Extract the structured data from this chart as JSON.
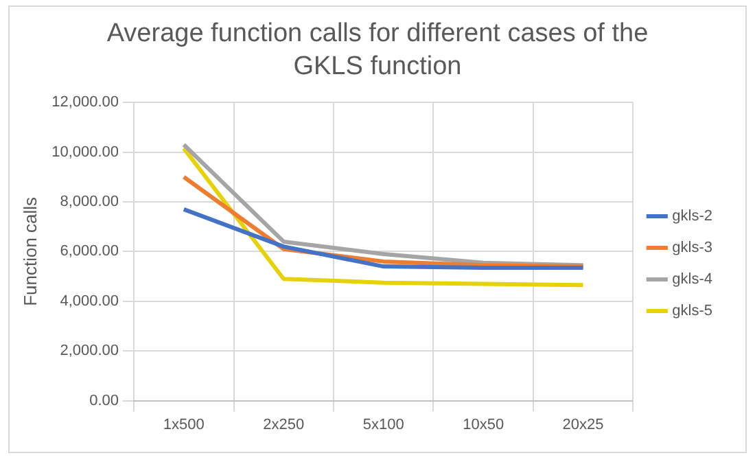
{
  "chart_data": {
    "type": "line",
    "title": "Average function calls for different cases of the GKLS function",
    "ylabel": "Function calls",
    "categories": [
      "1x500",
      "2x250",
      "5x100",
      "10x50",
      "20x25"
    ],
    "series": [
      {
        "name": "gkls-2",
        "color": "#4472c4",
        "values": [
          7700,
          6200,
          5400,
          5350,
          5350
        ]
      },
      {
        "name": "gkls-3",
        "color": "#ed7d31",
        "values": [
          9000,
          6100,
          5600,
          5450,
          5400
        ]
      },
      {
        "name": "gkls-4",
        "color": "#a5a5a5",
        "values": [
          10300,
          6400,
          5900,
          5550,
          5450
        ]
      },
      {
        "name": "gkls-5",
        "color": "#e6d20a",
        "values": [
          10150,
          4900,
          4750,
          4700,
          4650
        ]
      }
    ],
    "ylim": [
      0,
      12000
    ],
    "yticks": [
      {
        "value": 0,
        "label": "0.00"
      },
      {
        "value": 2000,
        "label": "2,000.00"
      },
      {
        "value": 4000,
        "label": "4,000.00"
      },
      {
        "value": 6000,
        "label": "6,000.00"
      },
      {
        "value": 8000,
        "label": "8,000.00"
      },
      {
        "value": 10000,
        "label": "10,000.00"
      },
      {
        "value": 12000,
        "label": "12,000.00"
      }
    ],
    "grid": true,
    "legend": "right",
    "marker": "none",
    "line_style": "solid"
  }
}
